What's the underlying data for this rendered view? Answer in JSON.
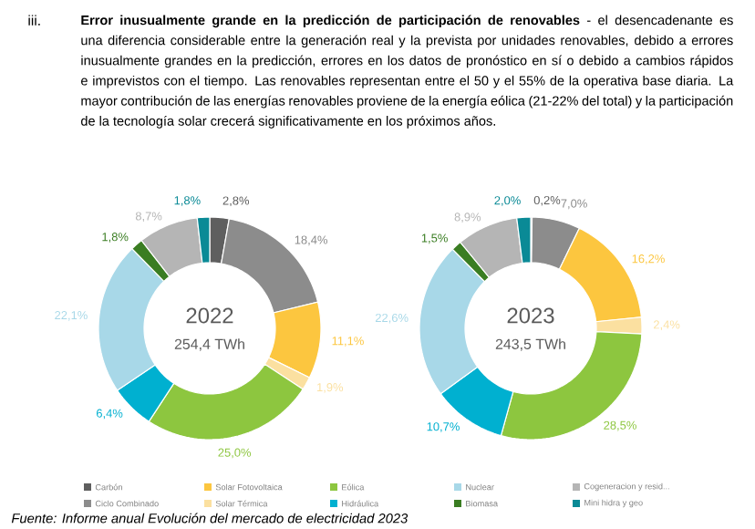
{
  "chart_data": [
    {
      "type": "donut",
      "title": "2022",
      "subtitle": "254,4 TWh",
      "categories": [
        "Carbón",
        "Ciclo Combinado",
        "Solar Fotovoltaica",
        "Solar Térmica",
        "Eólica",
        "Hidráulica",
        "Nuclear",
        "Biomasa",
        "Cogeneracion y resid...",
        "Mini hidra y geo"
      ],
      "values": [
        2.8,
        18.4,
        11.1,
        1.9,
        25.0,
        6.4,
        22.1,
        1.8,
        8.7,
        1.8
      ],
      "value_labels": [
        "2,8%",
        "18,4%",
        "11,1%",
        "1,9%",
        "25,0%",
        "6,4%",
        "22,1%",
        "1,8%",
        "8,7%",
        "1,8%"
      ],
      "colors": [
        "#5f5f5f",
        "#8c8c8c",
        "#fcc63f",
        "#fbe0a0",
        "#8dc63f",
        "#00b0d0",
        "#a8d8e8",
        "#3a7d22",
        "#b5b5b5",
        "#0a8a96"
      ],
      "legend": "bottom",
      "annotations": [
        "iii.",
        "**Error inusualmente grande en la predicción de participación de renovables** - el desencadenante es una diferencia considerable entre la generación real y la prevista por unidades renovables, debido a errores inusualmente grandes en la predicción, errores en los datos de pronóstico en sí o debido a cambios rápidos e imprevistos con el tiempo. Las renovables representan entre el 50 y el 55% de la operativa base diaria. La mayor contribución de las energías renovables proviene de la energía eólica (21-22% del total) y la participación de la tecnología solar crecerá significativamente en los próximos años.",
        "Fuente: Informe anual Evolución del mercado de electricidad 2023"
      ]
    },
    {
      "type": "donut",
      "title": "2023",
      "subtitle": "243,5 TWh",
      "values": [
        0.2,
        7.0,
        16.2,
        2.4,
        28.5,
        10.7,
        22.6,
        1.5,
        8.9,
        2.0
      ],
      "value_labels": [
        "0,2%",
        "7,0%",
        "16,2%",
        "2,4%",
        "28,5%",
        "10,7%",
        "22,6%",
        "1,5%",
        "8,9%",
        "2,0%"
      ],
      "colors": [
        "#5f5f5f",
        "#8c8c8c",
        "#fcc63f",
        "#fbe0a0",
        "#8dc63f",
        "#00b0d0",
        "#a8d8e8",
        "#3a7d22",
        "#b5b5b5",
        "#0a8a96"
      ]
    }
  ]
}
